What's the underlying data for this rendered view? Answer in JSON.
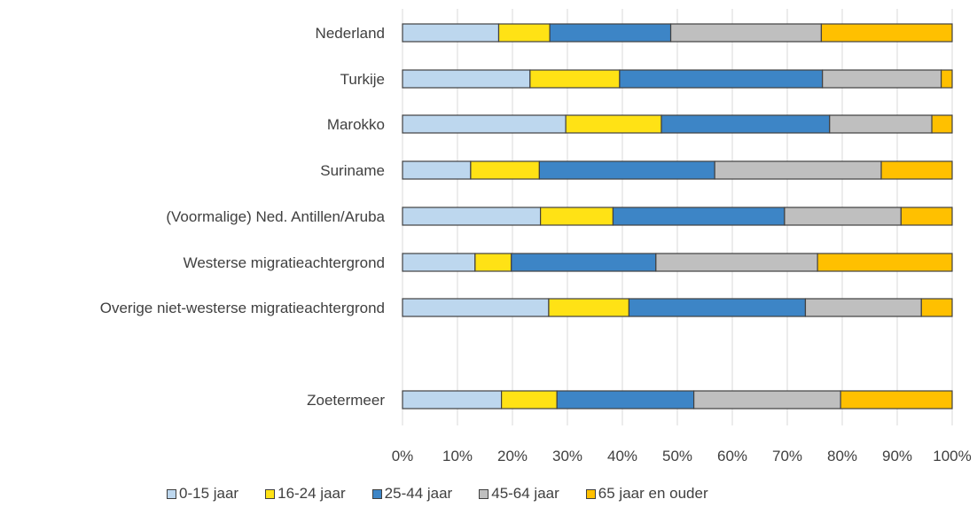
{
  "chart_data": {
    "type": "bar",
    "orientation": "horizontal",
    "stacked": "percent",
    "categories": [
      "Nederland",
      "Turkije",
      "Marokko",
      "Suriname",
      "(Voormalige) Ned. Antillen/Aruba",
      "Westerse migratieachtergrond",
      "Overige niet-westerse migratieachtergrond",
      "",
      "Zoetermeer"
    ],
    "series": [
      {
        "name": "0-15 jaar",
        "color": "#bdd7ee",
        "values": [
          17.5,
          23.2,
          29.7,
          12.4,
          25.1,
          13.2,
          26.6,
          null,
          18.0
        ]
      },
      {
        "name": "16-24 jaar",
        "color": "#ffe215",
        "values": [
          9.3,
          16.3,
          17.4,
          12.5,
          13.2,
          6.6,
          14.6,
          null,
          10.1
        ]
      },
      {
        "name": "25-44 jaar",
        "color": "#3d85c6",
        "values": [
          22.0,
          36.9,
          30.6,
          31.9,
          31.2,
          26.3,
          32.1,
          null,
          24.9
        ]
      },
      {
        "name": "45-64 jaar",
        "color": "#bfbfbf",
        "values": [
          27.4,
          21.6,
          18.6,
          30.3,
          21.2,
          29.4,
          21.1,
          null,
          26.7
        ]
      },
      {
        "name": "65 jaar en ouder",
        "color": "#ffc000",
        "values": [
          23.8,
          2.0,
          3.7,
          12.9,
          9.3,
          24.5,
          5.6,
          null,
          20.3
        ]
      }
    ],
    "xlim": [
      0,
      100
    ],
    "x_ticks": [
      "0%",
      "10%",
      "20%",
      "30%",
      "40%",
      "50%",
      "60%",
      "70%",
      "80%",
      "90%",
      "100%"
    ],
    "grid": "vertical",
    "legend_position": "bottom"
  }
}
